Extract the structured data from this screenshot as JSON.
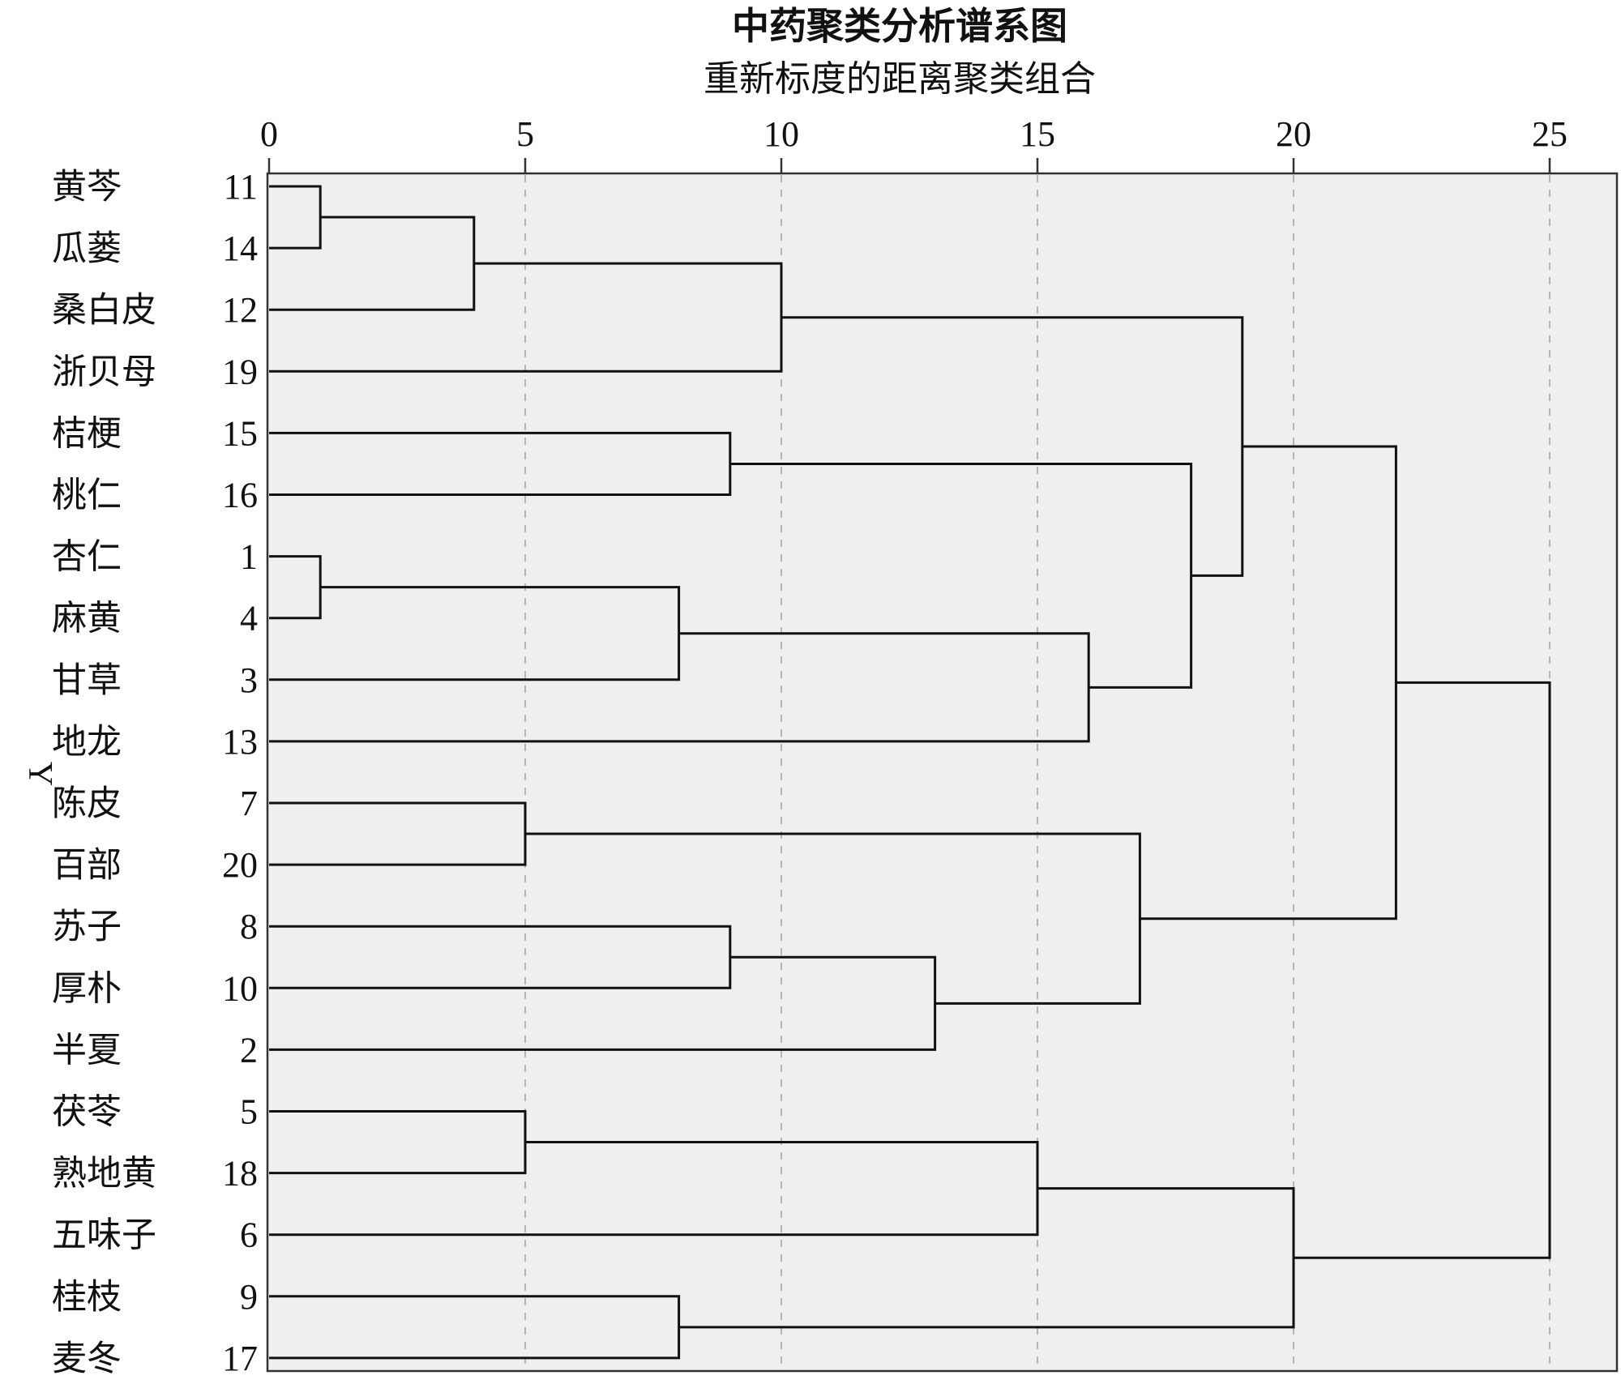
{
  "chart_data": {
    "type": "dendrogram",
    "title": "中药聚类分析谱系图",
    "subtitle": "重新标度的距离聚类组合",
    "ylabel": "Y",
    "xlim": [
      0,
      25
    ],
    "xticks": [
      0,
      5,
      10,
      15,
      20,
      25
    ],
    "grid": true,
    "leaves": [
      {
        "id": "11",
        "name": "黄芩"
      },
      {
        "id": "14",
        "name": "瓜蒌"
      },
      {
        "id": "12",
        "name": "桑白皮"
      },
      {
        "id": "19",
        "name": "浙贝母"
      },
      {
        "id": "15",
        "name": "桔梗"
      },
      {
        "id": "16",
        "name": "桃仁"
      },
      {
        "id": "1",
        "name": "杏仁"
      },
      {
        "id": "4",
        "name": "麻黄"
      },
      {
        "id": "3",
        "name": "甘草"
      },
      {
        "id": "13",
        "name": "地龙"
      },
      {
        "id": "7",
        "name": "陈皮"
      },
      {
        "id": "20",
        "name": "百部"
      },
      {
        "id": "8",
        "name": "苏子"
      },
      {
        "id": "10",
        "name": "厚朴"
      },
      {
        "id": "2",
        "name": "半夏"
      },
      {
        "id": "5",
        "name": "茯苓"
      },
      {
        "id": "18",
        "name": "熟地黄"
      },
      {
        "id": "6",
        "name": "五味子"
      },
      {
        "id": "9",
        "name": "桂枝"
      },
      {
        "id": "17",
        "name": "麦冬"
      }
    ],
    "merges": [
      {
        "a": "L0",
        "b": "L1",
        "distance": 1
      },
      {
        "a": "M0",
        "b": "L2",
        "distance": 4
      },
      {
        "a": "M1",
        "b": "L3",
        "distance": 10
      },
      {
        "a": "L4",
        "b": "L5",
        "distance": 9
      },
      {
        "a": "L6",
        "b": "L7",
        "distance": 1
      },
      {
        "a": "M4",
        "b": "L8",
        "distance": 8
      },
      {
        "a": "M5",
        "b": "L9",
        "distance": 16
      },
      {
        "a": "M3",
        "b": "M6",
        "distance": 18
      },
      {
        "a": "M2",
        "b": "M7",
        "distance": 19
      },
      {
        "a": "L10",
        "b": "L11",
        "distance": 5
      },
      {
        "a": "L12",
        "b": "L13",
        "distance": 9
      },
      {
        "a": "M10",
        "b": "L14",
        "distance": 13
      },
      {
        "a": "M9",
        "b": "M11",
        "distance": 17
      },
      {
        "a": "M8",
        "b": "M12",
        "distance": 22
      },
      {
        "a": "L15",
        "b": "L16",
        "distance": 5
      },
      {
        "a": "M14",
        "b": "L17",
        "distance": 15
      },
      {
        "a": "L18",
        "b": "L19",
        "distance": 8
      },
      {
        "a": "M15",
        "b": "M16",
        "distance": 20
      },
      {
        "a": "M13",
        "b": "M17",
        "distance": 25
      }
    ]
  }
}
